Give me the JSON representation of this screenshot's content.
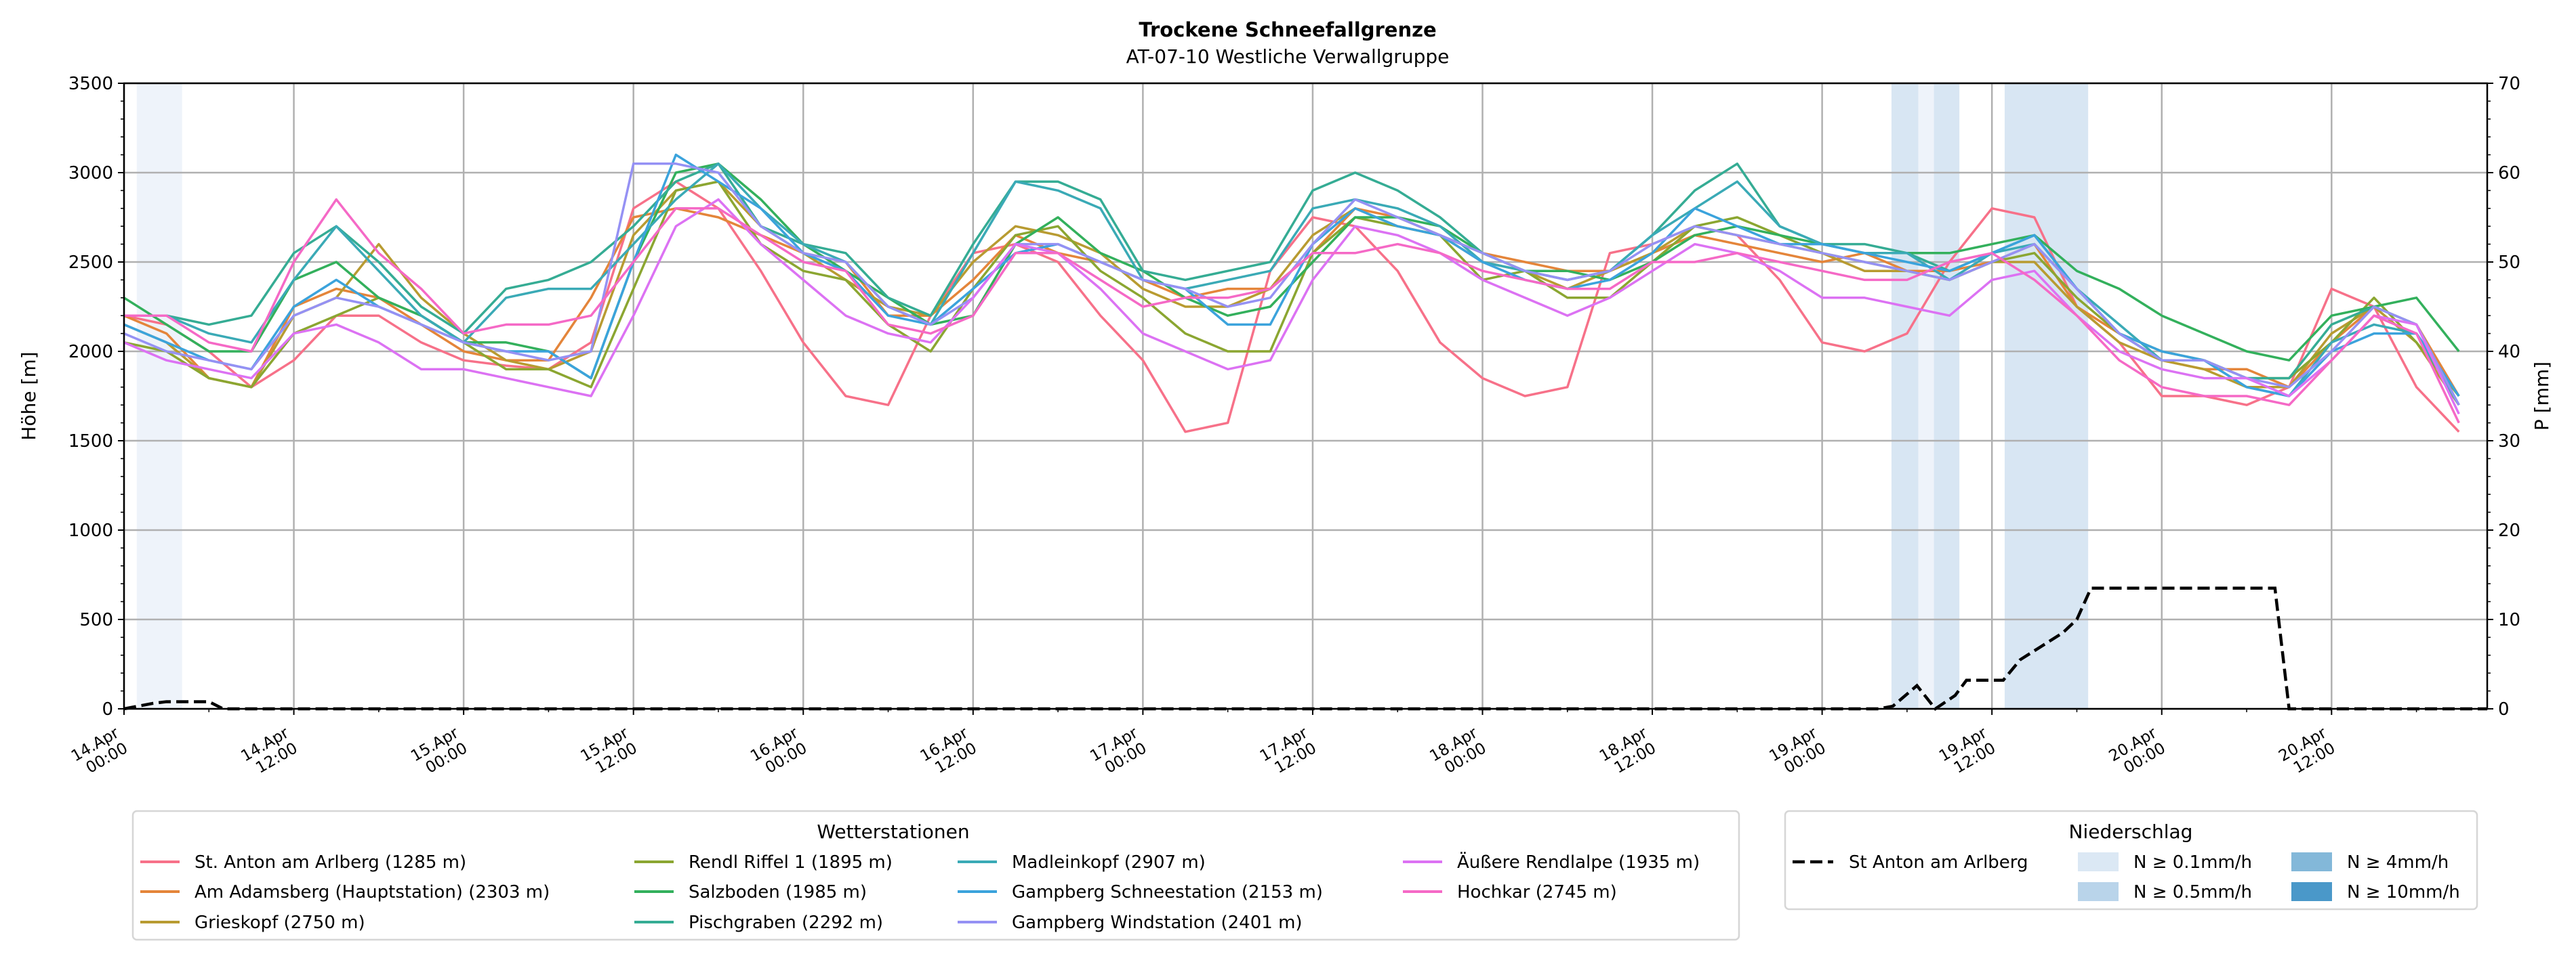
{
  "chart_data": {
    "type": "line",
    "title": "Trockene Schneefallgrenze",
    "subtitle": "AT-07-10 Westliche Verwallgruppe",
    "ylabel": "Höhe [m]",
    "ylabel_right": "P [mm]",
    "ylim": [
      0,
      3500
    ],
    "ylim_right": [
      0,
      70
    ],
    "yticks": [
      "0",
      "500",
      "1000",
      "1500",
      "2000",
      "2500",
      "3000",
      "3500"
    ],
    "yticks_right": [
      "0",
      "10",
      "20",
      "30",
      "40",
      "50",
      "60",
      "70"
    ],
    "x_unit": "hours since 14.Apr 00:00",
    "xlim": [
      0,
      167
    ],
    "xticks": [
      [
        "14.Apr",
        "00:00"
      ],
      [
        "14.Apr",
        "12:00"
      ],
      [
        "15.Apr",
        "00:00"
      ],
      [
        "15.Apr",
        "12:00"
      ],
      [
        "16.Apr",
        "00:00"
      ],
      [
        "16.Apr",
        "12:00"
      ],
      [
        "17.Apr",
        "00:00"
      ],
      [
        "17.Apr",
        "12:00"
      ],
      [
        "18.Apr",
        "00:00"
      ],
      [
        "18.Apr",
        "12:00"
      ],
      [
        "19.Apr",
        "00:00"
      ],
      [
        "19.Apr",
        "12:00"
      ],
      [
        "20.Apr",
        "00:00"
      ],
      [
        "20.Apr",
        "12:00"
      ]
    ],
    "grid": true,
    "x_step_hours": 3,
    "series": [
      {
        "name": "St. Anton am Arlberg (1285 m)",
        "color": "#f77189",
        "values": [
          2200,
          2150,
          2000,
          1800,
          1950,
          2200,
          2200,
          2050,
          1950,
          1920,
          1900,
          2050,
          2800,
          2950,
          2800,
          2450,
          2050,
          1750,
          1700,
          2200,
          2550,
          2600,
          2500,
          2200,
          1950,
          1550,
          1600,
          2450,
          2750,
          2700,
          2450,
          2050,
          1850,
          1750,
          1800,
          2550,
          2600,
          2700,
          2650,
          2400,
          2050,
          2000,
          2100,
          2500,
          2800,
          2750,
          2250,
          2050,
          1750,
          1750,
          1700,
          1800,
          2350,
          2250,
          1800,
          1550
        ]
      },
      {
        "name": "Am Adamsberg (Hauptstation) (2303 m)",
        "color": "#e4853a",
        "values": [
          2200,
          2100,
          1850,
          1800,
          2250,
          2350,
          2300,
          2150,
          2000,
          1950,
          1950,
          2300,
          2750,
          2800,
          2750,
          2650,
          2550,
          2500,
          2200,
          2200,
          2400,
          2650,
          2550,
          2500,
          2400,
          2300,
          2350,
          2350,
          2550,
          2800,
          2750,
          2650,
          2550,
          2500,
          2450,
          2450,
          2550,
          2650,
          2600,
          2550,
          2500,
          2550,
          2450,
          2450,
          2500,
          2600,
          2250,
          2100,
          1950,
          1900,
          1900,
          1800,
          2050,
          2250,
          2150,
          1750
        ]
      },
      {
        "name": "Grieskopf (2750 m)",
        "color": "#b89b31",
        "values": [
          2150,
          2050,
          1850,
          1800,
          2200,
          2300,
          2600,
          2300,
          2100,
          1950,
          1900,
          2000,
          2650,
          2900,
          2950,
          2700,
          2550,
          2400,
          2250,
          2200,
          2500,
          2700,
          2650,
          2550,
          2350,
          2250,
          2250,
          2350,
          2650,
          2800,
          2700,
          2650,
          2500,
          2450,
          2350,
          2450,
          2550,
          2700,
          2650,
          2600,
          2550,
          2450,
          2450,
          2400,
          2500,
          2500,
          2250,
          2050,
          1950,
          1900,
          1800,
          1800,
          2100,
          2250,
          2050,
          1700
        ]
      },
      {
        "name": "Rendl Riffel 1 (1895 m)",
        "color": "#8ba631",
        "values": [
          2050,
          2000,
          1850,
          1800,
          2100,
          2200,
          2300,
          2200,
          2050,
          1900,
          1900,
          1800,
          2350,
          2900,
          2950,
          2600,
          2450,
          2400,
          2150,
          2000,
          2350,
          2650,
          2700,
          2450,
          2300,
          2100,
          2000,
          2000,
          2550,
          2750,
          2700,
          2650,
          2400,
          2450,
          2300,
          2300,
          2500,
          2700,
          2750,
          2650,
          2550,
          2500,
          2450,
          2400,
          2500,
          2550,
          2300,
          2100,
          2000,
          1950,
          1850,
          1850,
          2050,
          2300,
          2050,
          1750
        ]
      },
      {
        "name": "Salzboden (1985 m)",
        "color": "#33b05c",
        "values": [
          2300,
          2150,
          2000,
          2000,
          2400,
          2500,
          2300,
          2200,
          2050,
          2050,
          2000,
          1850,
          2500,
          3000,
          3050,
          2850,
          2600,
          2450,
          2300,
          2150,
          2200,
          2600,
          2750,
          2550,
          2450,
          2300,
          2200,
          2250,
          2500,
          2750,
          2750,
          2700,
          2550,
          2450,
          2450,
          2400,
          2500,
          2650,
          2700,
          2650,
          2600,
          2550,
          2550,
          2550,
          2600,
          2650,
          2450,
          2350,
          2200,
          2100,
          2000,
          1950,
          2200,
          2250,
          2300,
          2000
        ]
      },
      {
        "name": "Pischgraben (2292 m)",
        "color": "#35ac94",
        "values": [
          2200,
          2200,
          2150,
          2200,
          2550,
          2700,
          2500,
          2250,
          2100,
          2350,
          2400,
          2500,
          2700,
          2950,
          3050,
          2700,
          2600,
          2550,
          2300,
          2200,
          2600,
          2950,
          2950,
          2850,
          2450,
          2400,
          2450,
          2500,
          2900,
          3000,
          2900,
          2750,
          2550,
          2450,
          2400,
          2450,
          2650,
          2900,
          3050,
          2700,
          2600,
          2600,
          2550,
          2450,
          2550,
          2650,
          2350,
          2100,
          1950,
          1950,
          1850,
          1850,
          2150,
          2250,
          2150,
          1700
        ]
      },
      {
        "name": "Madleinkopf (2907 m)",
        "color": "#3aaab6",
        "values": [
          2200,
          2200,
          2100,
          2050,
          2400,
          2700,
          2450,
          2200,
          2050,
          2300,
          2350,
          2350,
          2600,
          2850,
          3050,
          2800,
          2600,
          2500,
          2250,
          2150,
          2550,
          2950,
          2900,
          2800,
          2400,
          2350,
          2400,
          2450,
          2800,
          2850,
          2800,
          2700,
          2500,
          2450,
          2400,
          2450,
          2650,
          2800,
          2950,
          2700,
          2600,
          2550,
          2550,
          2400,
          2550,
          2600,
          2350,
          2150,
          1950,
          1950,
          1800,
          1750,
          2050,
          2150,
          2100,
          1700
        ]
      },
      {
        "name": "Gampberg Schneestation (2153 m)",
        "color": "#3ba3dc",
        "values": [
          2150,
          2050,
          1950,
          1900,
          2250,
          2400,
          2250,
          2150,
          2050,
          2000,
          2000,
          1850,
          2500,
          3100,
          2950,
          2800,
          2550,
          2450,
          2200,
          2150,
          2350,
          2550,
          2600,
          2500,
          2400,
          2350,
          2150,
          2150,
          2600,
          2800,
          2700,
          2650,
          2500,
          2400,
          2350,
          2400,
          2550,
          2800,
          2700,
          2600,
          2600,
          2550,
          2500,
          2450,
          2550,
          2650,
          2350,
          2100,
          2000,
          1950,
          1800,
          1750,
          2000,
          2100,
          2100,
          1750
        ]
      },
      {
        "name": "Gampberg Windstation (2401 m)",
        "color": "#9591f4",
        "values": [
          2100,
          2000,
          1950,
          1900,
          2200,
          2300,
          2250,
          2150,
          2050,
          2000,
          1950,
          2000,
          3050,
          3050,
          3000,
          2700,
          2550,
          2500,
          2250,
          2150,
          2300,
          2600,
          2600,
          2500,
          2400,
          2350,
          2250,
          2300,
          2600,
          2850,
          2750,
          2650,
          2550,
          2450,
          2400,
          2450,
          2600,
          2700,
          2650,
          2600,
          2550,
          2500,
          2450,
          2400,
          2500,
          2600,
          2350,
          2100,
          1950,
          1950,
          1850,
          1800,
          2000,
          2250,
          2150,
          1700
        ]
      },
      {
        "name": "Äußere Rendlalpe (1935 m)",
        "color": "#dc72f3",
        "values": [
          2050,
          1950,
          1900,
          1850,
          2100,
          2150,
          2050,
          1900,
          1900,
          1850,
          1800,
          1750,
          2200,
          2700,
          2850,
          2600,
          2400,
          2200,
          2100,
          2050,
          2300,
          2600,
          2550,
          2350,
          2100,
          2000,
          1900,
          1950,
          2400,
          2700,
          2650,
          2550,
          2400,
          2300,
          2200,
          2300,
          2450,
          2600,
          2550,
          2450,
          2300,
          2300,
          2250,
          2200,
          2400,
          2450,
          2200,
          2000,
          1900,
          1850,
          1850,
          1750,
          1950,
          2200,
          2150,
          1650
        ]
      },
      {
        "name": "Hochkar (2745 m)",
        "color": "#f569c6",
        "values": [
          2200,
          2200,
          2050,
          2000,
          2500,
          2850,
          2550,
          2350,
          2100,
          2150,
          2150,
          2200,
          2500,
          2800,
          2800,
          2650,
          2500,
          2450,
          2150,
          2100,
          2200,
          2550,
          2550,
          2400,
          2250,
          2300,
          2300,
          2350,
          2550,
          2550,
          2600,
          2550,
          2450,
          2400,
          2350,
          2350,
          2500,
          2500,
          2550,
          2500,
          2450,
          2400,
          2400,
          2500,
          2550,
          2400,
          2200,
          1950,
          1800,
          1750,
          1750,
          1700,
          1950,
          2200,
          2100,
          1600
        ]
      }
    ],
    "precip_series": {
      "name": "St Anton am Arlberg",
      "color": "#000000",
      "axis": "right",
      "points": [
        [
          0,
          0
        ],
        [
          2,
          0.6
        ],
        [
          3,
          0.8
        ],
        [
          6,
          0.8
        ],
        [
          7,
          0
        ],
        [
          124,
          0
        ],
        [
          125,
          0.3
        ],
        [
          126.7,
          2.6
        ],
        [
          128,
          0
        ],
        [
          129.4,
          1.5
        ],
        [
          130.2,
          3.2
        ],
        [
          132.8,
          3.2
        ],
        [
          134,
          5.5
        ],
        [
          135.5,
          7
        ],
        [
          137,
          8.5
        ],
        [
          138,
          10
        ],
        [
          139,
          13.5
        ],
        [
          152,
          13.5
        ],
        [
          153,
          0
        ],
        [
          167,
          0
        ]
      ]
    },
    "precip_bands": [
      {
        "start": 0.9,
        "end": 4.1,
        "level": 0
      },
      {
        "start": 124.9,
        "end": 126.8,
        "level": 1
      },
      {
        "start": 126.8,
        "end": 127.9,
        "level": 0
      },
      {
        "start": 127.9,
        "end": 129.7,
        "level": 1
      },
      {
        "start": 132.9,
        "end": 138.8,
        "level": 1
      }
    ],
    "legend_stations": {
      "title": "Wetterstationen",
      "placement": "bottom-left"
    },
    "legend_precip": {
      "title": "Niederschlag",
      "placement": "bottom-right",
      "line_label": "St Anton am Arlberg",
      "levels": [
        {
          "label": "N ≥ 0.1mm/h",
          "color": "#dbe8f4"
        },
        {
          "label": "N ≥ 0.5mm/h",
          "color": "#b9d4ea"
        },
        {
          "label": "N ≥ 4mm/h",
          "color": "#83b8d9"
        },
        {
          "label": "N ≥ 10mm/h",
          "color": "#4a98c9"
        }
      ],
      "band_colors": [
        "#eef3fa",
        "#d8e6f3"
      ]
    }
  }
}
